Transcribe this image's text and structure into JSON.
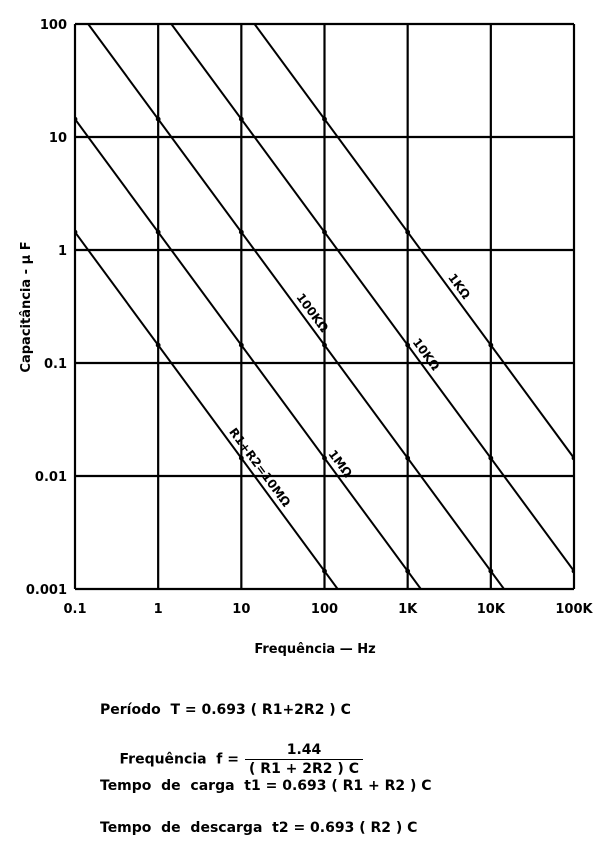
{
  "chart_data": {
    "type": "line",
    "x_scale": "log",
    "y_scale": "log",
    "xlim": [
      0.1,
      100000
    ],
    "ylim": [
      0.001,
      100
    ],
    "xlabel": "Frequência — Hz",
    "ylabel": "Capacitância - μ F",
    "x_ticks": [
      0.1,
      1,
      10,
      100,
      1000,
      10000,
      100000
    ],
    "x_tick_labels": [
      "0.1",
      "1",
      "10",
      "100",
      "1K",
      "10K",
      "100K"
    ],
    "y_ticks": [
      0.001,
      0.01,
      0.1,
      1,
      10,
      100
    ],
    "y_tick_labels": [
      "0.001",
      "0.01",
      "0.1",
      "1",
      "10",
      "100"
    ],
    "grid": true,
    "series": [
      {
        "name": "R1+R2=10MΩ",
        "x": [
          0.1,
          180
        ],
        "y": [
          1.44,
          0.0008
        ],
        "label_text": "R1+R2=10MΩ"
      },
      {
        "name": "1MΩ",
        "x": [
          0.1,
          1800
        ],
        "y": [
          14.4,
          0.0008
        ],
        "label_text": "1MΩ"
      },
      {
        "name": "100KΩ",
        "x": [
          0.144,
          18000
        ],
        "y": [
          100,
          0.0008
        ],
        "label_text": "100KΩ"
      },
      {
        "name": "10KΩ",
        "x": [
          1.44,
          180000
        ],
        "y": [
          100,
          0.0008
        ],
        "label_text": "10KΩ"
      },
      {
        "name": "1KΩ",
        "x": [
          14.4,
          100000
        ],
        "y": [
          100,
          0.0144
        ],
        "label_text": "1KΩ"
      }
    ]
  },
  "formulas": {
    "period": "Período  T = 0.693 ( R1+2R2 ) C",
    "frequency_prefix": "Frequência  f =",
    "frequency_numerator": "1.44",
    "frequency_denominator": "( R1 + 2R2 ) C",
    "charge_time": "Tempo  de  carga  t1 = 0.693 ( R1 + R2 ) C",
    "discharge_time": "Tempo  de  descarga  t2 = 0.693 ( R2 ) C"
  }
}
